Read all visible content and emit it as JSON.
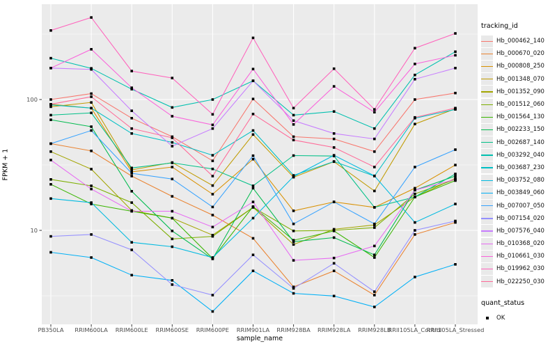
{
  "figure": {
    "background": "#FFFFFF",
    "panel_color": "#EBEBEB",
    "grid_color": "#FFFFFF",
    "axis_text_color": "#4d4d4d",
    "tick_color": "#333333"
  },
  "chart_data": {
    "type": "line",
    "xlabel": "sample_name",
    "ylabel": "FPKM + 1",
    "y_scale": "log10",
    "ylim": [
      1.9,
      520
    ],
    "grid": "major-and-minor",
    "legend_position": "right",
    "point_marker": "small black square (quant_status OK)",
    "x_categories": [
      "PB350LA",
      "RRIM600LA",
      "RRIM600LE",
      "RRIM600SE",
      "RRIM600PE",
      "RRIM901LA",
      "RRIM928BA",
      "RRIM928LA",
      "RRIM928LB",
      "RRII105LA_Control",
      "RRII105LA_Stressed"
    ],
    "y_ticks": [
      {
        "label": "100",
        "value": 100
      },
      {
        "label": "10",
        "value": 10
      }
    ],
    "y_minor_gridlines": [
      3.162,
      31.62,
      316.2
    ],
    "series": [
      {
        "name": "Hb_000462_140",
        "color": "#F8766D",
        "values": [
          100,
          111,
          72,
          52,
          34,
          101,
          52,
          50,
          40,
          100,
          112
        ]
      },
      {
        "name": "Hb_000670_020",
        "color": "#EA8331",
        "values": [
          46,
          40.5,
          26,
          18.2,
          13.1,
          8.7,
          3.7,
          4.9,
          3.2,
          9.3,
          11.5
        ]
      },
      {
        "name": "Hb_000808_250",
        "color": "#D89000",
        "values": [
          92,
          86,
          28,
          30.5,
          18.9,
          35,
          14.1,
          16.5,
          15,
          21,
          31.6
        ]
      },
      {
        "name": "Hb_001348_070",
        "color": "#C09B00",
        "values": [
          88,
          95,
          29,
          33,
          22,
          54,
          25.5,
          33.5,
          20,
          65,
          85
        ]
      },
      {
        "name": "Hb_001352_090",
        "color": "#A3A500",
        "values": [
          40,
          29.4,
          14.2,
          12.4,
          9.2,
          15,
          7.8,
          10.2,
          11,
          18,
          25
        ]
      },
      {
        "name": "Hb_001512_060",
        "color": "#7CAE00",
        "values": [
          24.5,
          21.9,
          16.3,
          8.6,
          9,
          15,
          9.9,
          10,
          10.5,
          19,
          24.5
        ]
      },
      {
        "name": "Hb_001564_130",
        "color": "#39B600",
        "values": [
          22.5,
          15.9,
          14,
          12.4,
          6.1,
          15.2,
          8.4,
          9.9,
          6.2,
          18,
          24
        ]
      },
      {
        "name": "Hb_002233_150",
        "color": "#00BB4E",
        "values": [
          70,
          62,
          19.9,
          9.9,
          6.05,
          21,
          8.2,
          8.8,
          6.5,
          20.3,
          26
        ]
      },
      {
        "name": "Hb_002687_140",
        "color": "#00C087",
        "values": [
          76,
          79,
          30,
          32.8,
          29.5,
          21.9,
          37.3,
          37,
          15,
          18,
          27
        ]
      },
      {
        "name": "Hb_003292_040",
        "color": "#00C0AF",
        "values": [
          207,
          173,
          120,
          87,
          100,
          139,
          76,
          81,
          60,
          154,
          232
        ]
      },
      {
        "name": "Hb_003687_230",
        "color": "#00BFC4",
        "values": [
          91,
          86,
          55,
          47,
          37.5,
          58,
          26.3,
          33.6,
          26,
          72,
          84
        ]
      },
      {
        "name": "Hb_003752_080",
        "color": "#00BAE0",
        "values": [
          17.5,
          16.3,
          8.1,
          7.5,
          6.2,
          12.4,
          25.8,
          37.5,
          26.1,
          11.5,
          15.9
        ]
      },
      {
        "name": "Hb_003849_060",
        "color": "#00B0F6",
        "values": [
          6.8,
          6.2,
          4.55,
          4.15,
          2.4,
          4.9,
          3.3,
          3.15,
          2.6,
          4.4,
          5.5
        ]
      },
      {
        "name": "Hb_007007_050",
        "color": "#35A2FF",
        "values": [
          46,
          58,
          27.3,
          24.7,
          15.1,
          37.2,
          11.2,
          16.5,
          11.2,
          30.5,
          41.4
        ]
      },
      {
        "name": "Hb_007154_020",
        "color": "#9590FF",
        "values": [
          9,
          9.3,
          7.1,
          3.85,
          3.2,
          6.5,
          3.6,
          5.6,
          3.4,
          10,
          11.8
        ]
      },
      {
        "name": "Hb_007576_040",
        "color": "#C77CFF",
        "values": [
          174,
          170,
          82,
          44,
          60,
          139,
          69,
          55,
          50,
          143,
          174
        ]
      },
      {
        "name": "Hb_010368_020",
        "color": "#E76BF3",
        "values": [
          34.5,
          20.7,
          14,
          14,
          10.6,
          16.5,
          5.9,
          6.15,
          7.6,
          20.3,
          24.5
        ]
      },
      {
        "name": "Hb_010661_030",
        "color": "#FA62DB",
        "values": [
          174,
          242,
          123,
          74.5,
          64,
          171,
          64.5,
          126,
          80,
          187,
          218
        ]
      },
      {
        "name": "Hb_019962_030",
        "color": "#FF62BC",
        "values": [
          337,
          424,
          165,
          146,
          77,
          296,
          86,
          172,
          84,
          247,
          320
        ]
      },
      {
        "name": "Hb_022250_030",
        "color": "#FF6A98",
        "values": [
          92,
          105,
          60,
          51,
          26,
          77.5,
          49,
          43,
          30.5,
          73,
          86
        ]
      }
    ]
  },
  "legend": {
    "tracking_title": "tracking_id",
    "quant_title": "quant_status",
    "quant_items": [
      {
        "label": "OK",
        "marker": "black-square"
      }
    ]
  }
}
